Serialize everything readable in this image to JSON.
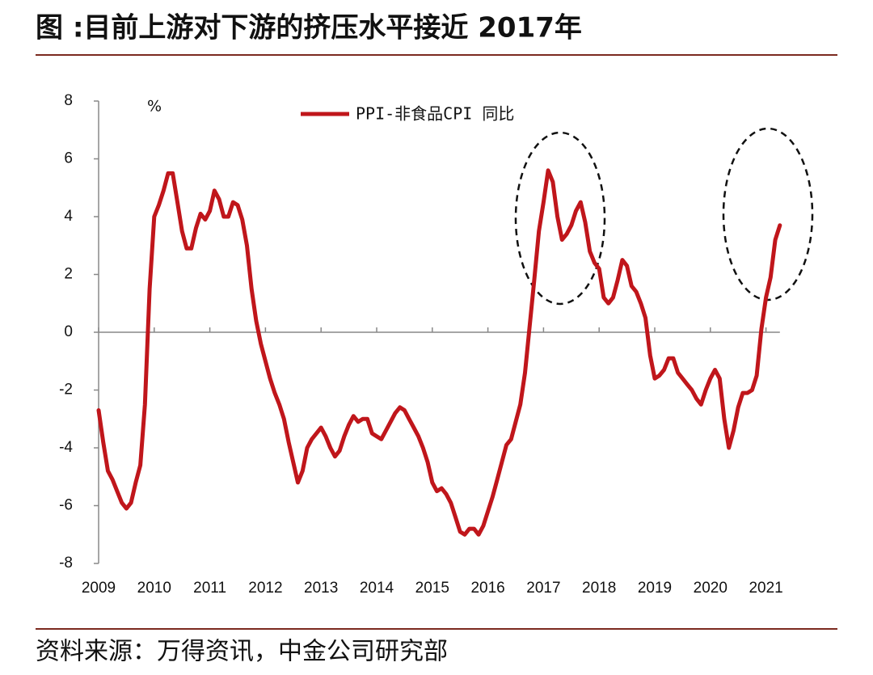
{
  "title": "图 :目前上游对下游的挤压水平接近 2017年",
  "source": "资料来源：万得资讯，中金公司研究部",
  "chart_data": {
    "type": "line",
    "y_label": "%",
    "categories": [
      "2009",
      null,
      null,
      null,
      null,
      null,
      null,
      null,
      null,
      null,
      null,
      null,
      "2010",
      null,
      null,
      null,
      null,
      null,
      null,
      null,
      null,
      null,
      null,
      null,
      "2011",
      null,
      null,
      null,
      null,
      null,
      null,
      null,
      null,
      null,
      null,
      null,
      "2012",
      null,
      null,
      null,
      null,
      null,
      null,
      null,
      null,
      null,
      null,
      null,
      "2013",
      null,
      null,
      null,
      null,
      null,
      null,
      null,
      null,
      null,
      null,
      null,
      "2014",
      null,
      null,
      null,
      null,
      null,
      null,
      null,
      null,
      null,
      null,
      null,
      "2015",
      null,
      null,
      null,
      null,
      null,
      null,
      null,
      null,
      null,
      null,
      null,
      "2016",
      null,
      null,
      null,
      null,
      null,
      null,
      null,
      null,
      null,
      null,
      null,
      "2017",
      null,
      null,
      null,
      null,
      null,
      null,
      null,
      null,
      null,
      null,
      null,
      "2018",
      null,
      null,
      null,
      null,
      null,
      null,
      null,
      null,
      null,
      null,
      null,
      "2019",
      null,
      null,
      null,
      null,
      null,
      null,
      null,
      null,
      null,
      null,
      null,
      "2020",
      null,
      null,
      null,
      null,
      null,
      null,
      null,
      null,
      null,
      null,
      null,
      "2021",
      null,
      null,
      null
    ],
    "series": [
      {
        "name": "PPI-非食品CPI 同比",
        "color": "#c0161b",
        "values": [
          -2.7,
          -3.8,
          -4.8,
          -5.1,
          -5.5,
          -5.9,
          -6.1,
          -5.9,
          -5.2,
          -4.6,
          -2.5,
          1.5,
          4.0,
          4.4,
          4.9,
          5.5,
          5.5,
          4.5,
          3.5,
          2.9,
          2.9,
          3.6,
          4.1,
          3.9,
          4.2,
          4.9,
          4.6,
          4.0,
          4.0,
          4.5,
          4.4,
          3.9,
          3.0,
          1.5,
          0.4,
          -0.4,
          -1.0,
          -1.6,
          -2.1,
          -2.5,
          -3.0,
          -3.8,
          -4.5,
          -5.2,
          -4.8,
          -4.0,
          -3.7,
          -3.5,
          -3.3,
          -3.6,
          -4.0,
          -4.3,
          -4.1,
          -3.6,
          -3.2,
          -2.9,
          -3.1,
          -3.0,
          -3.0,
          -3.5,
          -3.6,
          -3.7,
          -3.4,
          -3.1,
          -2.8,
          -2.6,
          -2.7,
          -3.0,
          -3.3,
          -3.6,
          -4.0,
          -4.5,
          -5.2,
          -5.5,
          -5.4,
          -5.6,
          -5.9,
          -6.4,
          -6.9,
          -7.0,
          -6.8,
          -6.8,
          -7.0,
          -6.7,
          -6.2,
          -5.7,
          -5.1,
          -4.5,
          -3.9,
          -3.7,
          -3.1,
          -2.5,
          -1.4,
          0.2,
          1.8,
          3.5,
          4.5,
          5.6,
          5.2,
          4.0,
          3.2,
          3.4,
          3.7,
          4.2,
          4.5,
          3.8,
          2.8,
          2.4,
          2.2,
          1.2,
          1.0,
          1.2,
          1.8,
          2.5,
          2.3,
          1.6,
          1.4,
          1.0,
          0.5,
          -0.8,
          -1.6,
          -1.5,
          -1.3,
          -0.9,
          -0.9,
          -1.4,
          -1.6,
          -1.8,
          -2.0,
          -2.3,
          -2.5,
          -2.0,
          -1.6,
          -1.3,
          -1.6,
          -3.0,
          -4.0,
          -3.4,
          -2.6,
          -2.1,
          -2.1,
          -2.0,
          -1.5,
          0.1,
          1.2,
          1.9,
          3.2,
          3.7
        ]
      }
    ],
    "ylim": [
      -8,
      8
    ],
    "yticks": [
      -8,
      -6,
      -4,
      -2,
      0,
      2,
      4,
      6,
      8
    ]
  }
}
